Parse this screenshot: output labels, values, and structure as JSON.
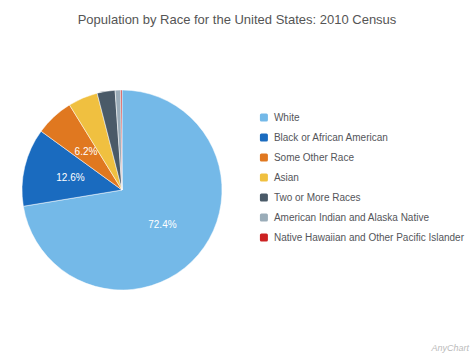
{
  "chart_data": {
    "type": "pie",
    "title": "Population by Race for the United States: 2010 Census",
    "categories": [
      "White",
      "Black or African American",
      "Some Other Race",
      "Asian",
      "Two or More Races",
      "American Indian and Alaska Native",
      "Native Hawaiian and Other Pacific Islander"
    ],
    "values": [
      72.4,
      12.6,
      6.2,
      4.8,
      2.9,
      0.9,
      0.2
    ],
    "value_labels": [
      "72.4%",
      "12.6%",
      "6.2%",
      null,
      null,
      null,
      null
    ],
    "colors": [
      "#74b9e8",
      "#1a6bbf",
      "#e07820",
      "#f0c040",
      "#4a5a68",
      "#9aacb8",
      "#cc2222"
    ],
    "data_labels": true,
    "legend": "right",
    "annotations": [
      "AnyChart"
    ]
  }
}
